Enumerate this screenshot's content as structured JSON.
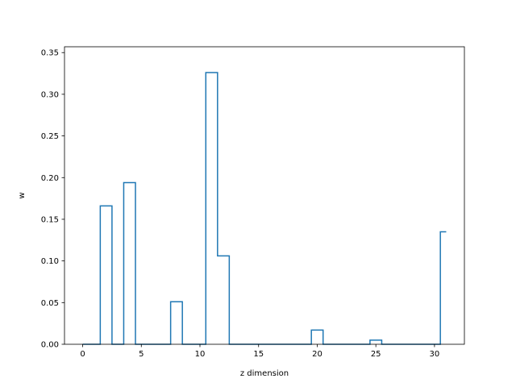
{
  "chart_data": {
    "type": "step",
    "xlabel": "z dimension",
    "ylabel": "w",
    "xlim": [
      -1.55,
      32.55
    ],
    "ylim": [
      0,
      0.357
    ],
    "x_ticks": [
      0,
      5,
      10,
      15,
      20,
      25,
      30
    ],
    "y_ticks": [
      0.0,
      0.05,
      0.1,
      0.15,
      0.2,
      0.25,
      0.3,
      0.35
    ],
    "grid": false,
    "line_color": "#1f77b4",
    "x": [
      0,
      1,
      2,
      3,
      4,
      5,
      6,
      7,
      8,
      9,
      10,
      11,
      12,
      13,
      14,
      15,
      16,
      17,
      18,
      19,
      20,
      21,
      22,
      23,
      24,
      25,
      26,
      27,
      28,
      29,
      30,
      31
    ],
    "values": [
      0,
      0,
      0.166,
      0,
      0.194,
      0,
      0,
      0,
      0.051,
      0,
      0,
      0.326,
      0.106,
      0,
      0,
      0,
      0,
      0,
      0,
      0,
      0.017,
      0,
      0,
      0,
      0,
      0.005,
      0,
      0,
      0,
      0,
      0,
      0.135
    ]
  }
}
